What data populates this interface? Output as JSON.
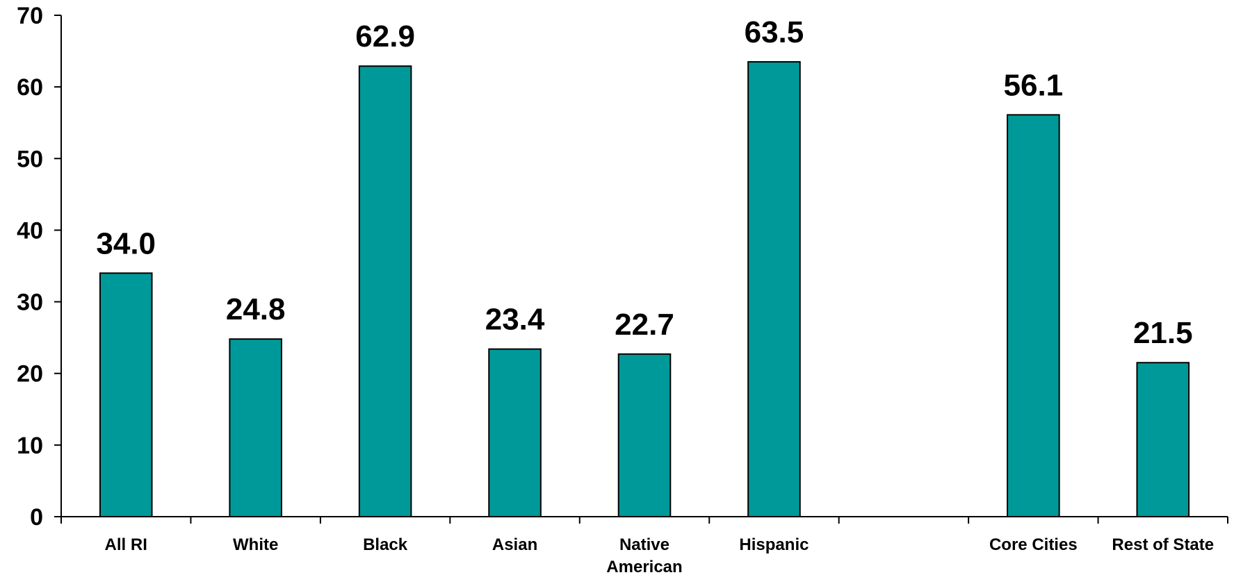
{
  "chart_data": {
    "type": "bar",
    "categories": [
      "All RI",
      "White",
      "Black",
      "Asian",
      "Native American",
      "Hispanic",
      "",
      "Core Cities",
      "Rest of State"
    ],
    "category_lines": [
      [
        "All RI"
      ],
      [
        "White"
      ],
      [
        "Black"
      ],
      [
        "Asian"
      ],
      [
        "Native",
        "American"
      ],
      [
        "Hispanic"
      ],
      [],
      [
        "Core Cities"
      ],
      [
        "Rest of State"
      ]
    ],
    "values": [
      34.0,
      24.8,
      62.9,
      23.4,
      22.7,
      63.5,
      null,
      56.1,
      21.5
    ],
    "data_labels": [
      "34.0",
      "24.8",
      "62.9",
      "23.4",
      "22.7",
      "63.5",
      "",
      "56.1",
      "21.5"
    ],
    "title": "",
    "xlabel": "",
    "ylabel": "",
    "ylim": [
      0,
      70
    ],
    "yticks": [
      0,
      10,
      20,
      30,
      40,
      50,
      60,
      70
    ],
    "grid": false,
    "legend": "none",
    "bar_color": "#009999"
  }
}
